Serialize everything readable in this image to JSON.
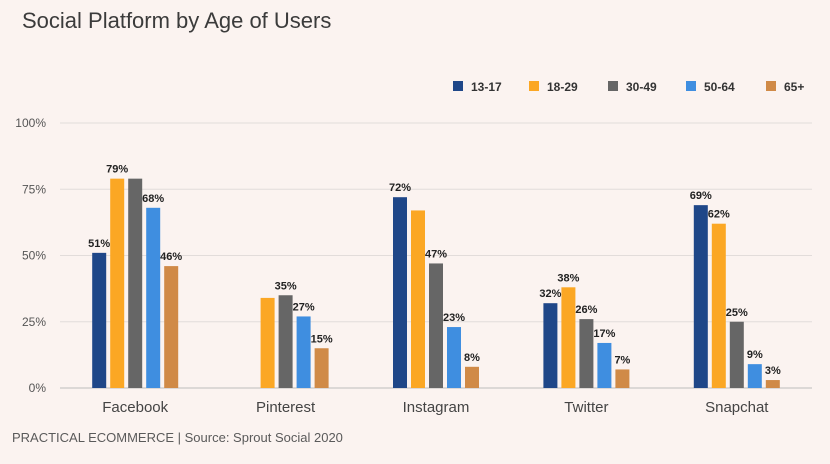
{
  "title": "Social Platform by Age of Users",
  "source": "PRACTICAL ECOMMERCE | Source: Sprout Social 2020",
  "chart_data": {
    "type": "bar",
    "categories": [
      "Facebook",
      "Pinterest",
      "Instagram",
      "Twitter",
      "Snapchat"
    ],
    "series": [
      {
        "name": "13-17",
        "color": "#1f4788",
        "values": [
          51,
          null,
          72,
          32,
          69
        ]
      },
      {
        "name": "18-29",
        "color": "#fba724",
        "values": [
          79,
          34,
          67,
          38,
          62
        ]
      },
      {
        "name": "30-49",
        "color": "#666666",
        "values": [
          79,
          35,
          47,
          26,
          25
        ]
      },
      {
        "name": "50-64",
        "color": "#3f8ee0",
        "values": [
          68,
          27,
          23,
          17,
          9
        ]
      },
      {
        "name": "65+",
        "color": "#d08a47",
        "values": [
          46,
          15,
          8,
          7,
          3
        ]
      }
    ],
    "data_labels": [
      [
        "51%",
        "",
        "72%",
        "32%",
        "69%"
      ],
      [
        "79%",
        "",
        "",
        "38%",
        "62%"
      ],
      [
        "",
        "35%",
        "47%",
        "26%",
        "25%"
      ],
      [
        "68%",
        "27%",
        "23%",
        "17%",
        "9%"
      ],
      [
        "46%",
        "15%",
        "8%",
        "7%",
        "3%"
      ]
    ],
    "yticks": [
      "0%",
      "25%",
      "50%",
      "75%",
      "100%"
    ],
    "ylim": [
      0,
      100
    ],
    "legend": "top-right",
    "grid": true
  }
}
